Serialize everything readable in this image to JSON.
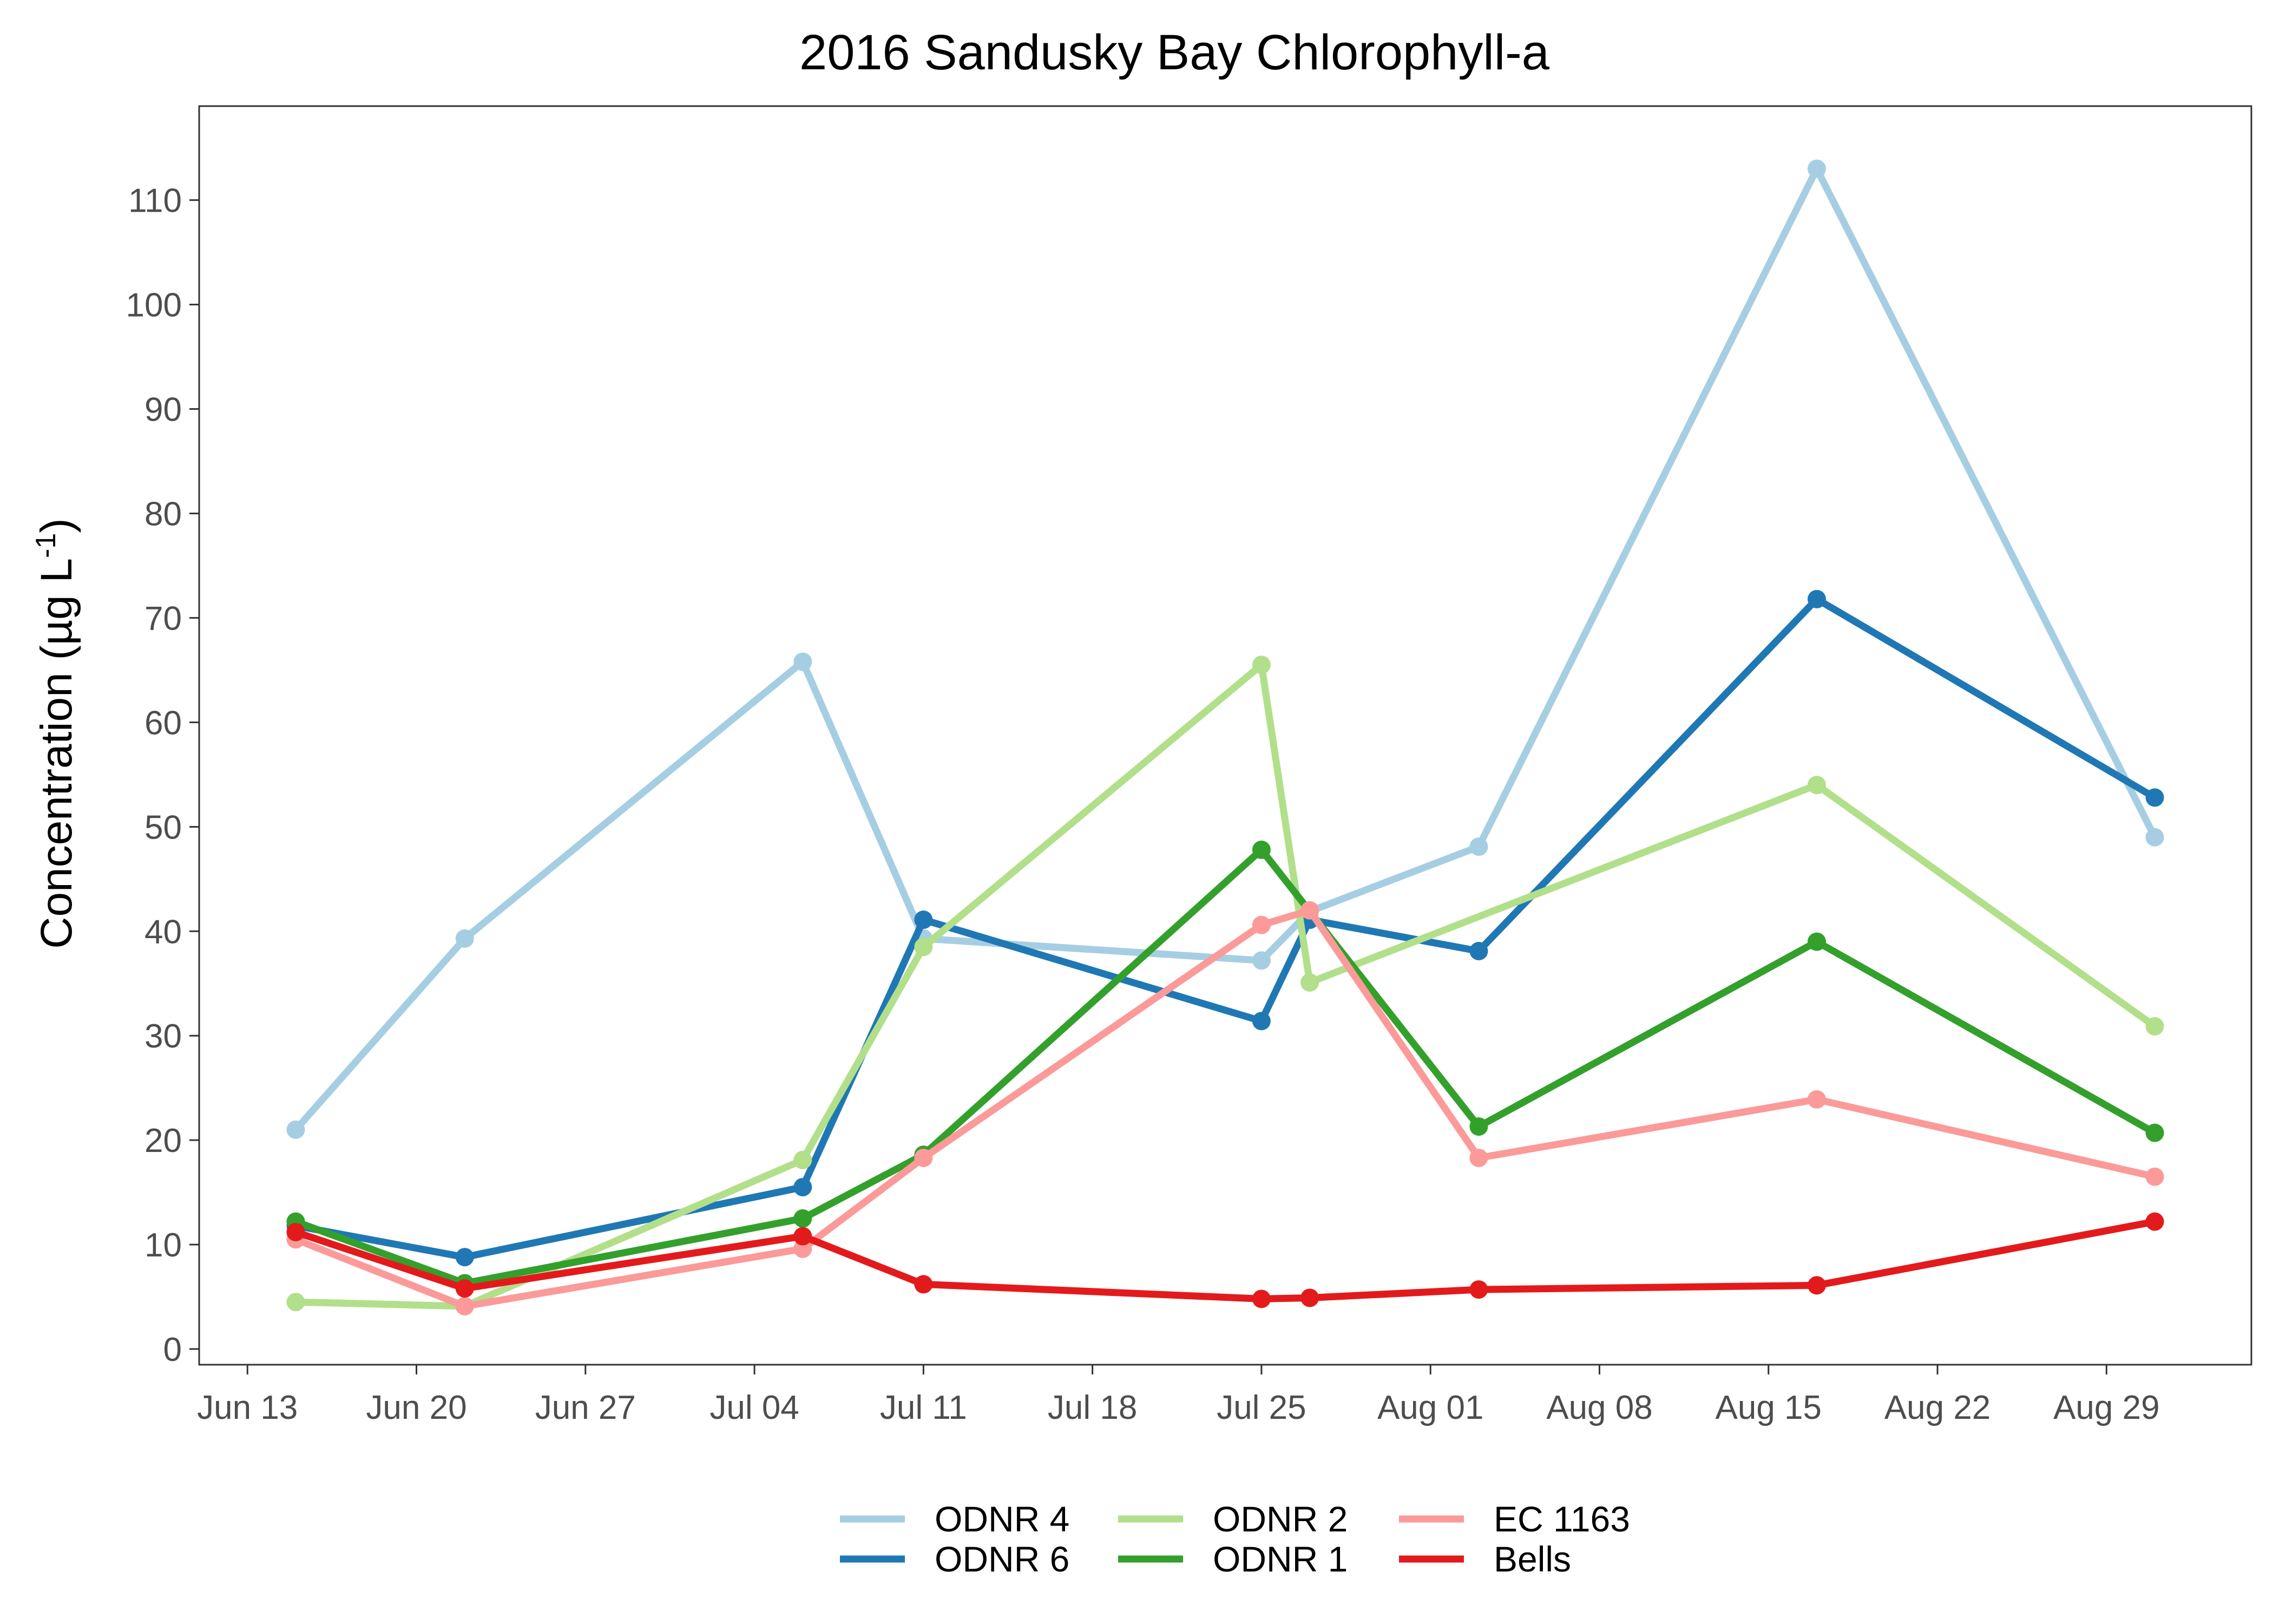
{
  "chart_data": {
    "type": "line",
    "title": "2016 Sandusky Bay Chlorophyll-a",
    "ylabel": {
      "prefix": "Concentration (µg L",
      "superscript": "-1",
      "suffix": ")"
    },
    "xlabel": "",
    "x_axis": {
      "kind": "date",
      "range": [
        "2016-06-11",
        "2016-09-04"
      ],
      "ticks": [
        {
          "date": "2016-06-13",
          "label": "Jun 13"
        },
        {
          "date": "2016-06-20",
          "label": "Jun 20"
        },
        {
          "date": "2016-06-27",
          "label": "Jun 27"
        },
        {
          "date": "2016-07-04",
          "label": "Jul 04"
        },
        {
          "date": "2016-07-11",
          "label": "Jul 11"
        },
        {
          "date": "2016-07-18",
          "label": "Jul 18"
        },
        {
          "date": "2016-07-25",
          "label": "Jul 25"
        },
        {
          "date": "2016-08-01",
          "label": "Aug 01"
        },
        {
          "date": "2016-08-08",
          "label": "Aug 08"
        },
        {
          "date": "2016-08-15",
          "label": "Aug 15"
        },
        {
          "date": "2016-08-22",
          "label": "Aug 22"
        },
        {
          "date": "2016-08-29",
          "label": "Aug 29"
        }
      ]
    },
    "y_axis": {
      "range": [
        -1.5,
        119
      ],
      "ticks": [
        0,
        10,
        20,
        30,
        40,
        50,
        60,
        70,
        80,
        90,
        100,
        110
      ]
    },
    "grid": false,
    "legend": {
      "position": "bottom",
      "columns": 3
    },
    "series": [
      {
        "name": "ODNR 4",
        "color": "#a6cee3",
        "points": [
          {
            "x": "2016-06-15",
            "y": 21.0
          },
          {
            "x": "2016-06-22",
            "y": 39.3
          },
          {
            "x": "2016-07-06",
            "y": 65.8
          },
          {
            "x": "2016-07-11",
            "y": 39.3
          },
          {
            "x": "2016-07-25",
            "y": 37.2
          },
          {
            "x": "2016-07-27",
            "y": 41.9
          },
          {
            "x": "2016-08-03",
            "y": 48.1
          },
          {
            "x": "2016-08-17",
            "y": 113.0
          },
          {
            "x": "2016-08-31",
            "y": 49.0
          }
        ]
      },
      {
        "name": "ODNR 6",
        "color": "#1f78b4",
        "points": [
          {
            "x": "2016-06-15",
            "y": 11.8
          },
          {
            "x": "2016-06-22",
            "y": 8.8
          },
          {
            "x": "2016-07-06",
            "y": 15.5
          },
          {
            "x": "2016-07-11",
            "y": 41.1
          },
          {
            "x": "2016-07-25",
            "y": 31.4
          },
          {
            "x": "2016-07-27",
            "y": 41.1
          },
          {
            "x": "2016-08-03",
            "y": 38.1
          },
          {
            "x": "2016-08-17",
            "y": 71.8
          },
          {
            "x": "2016-08-31",
            "y": 52.8
          }
        ]
      },
      {
        "name": "ODNR 2",
        "color": "#b2df8a",
        "points": [
          {
            "x": "2016-06-15",
            "y": 4.5
          },
          {
            "x": "2016-06-22",
            "y": 4.1
          },
          {
            "x": "2016-07-06",
            "y": 18.1
          },
          {
            "x": "2016-07-11",
            "y": 38.5
          },
          {
            "x": "2016-07-25",
            "y": 65.5
          },
          {
            "x": "2016-07-27",
            "y": 35.1
          },
          {
            "x": "2016-08-17",
            "y": 54.0
          },
          {
            "x": "2016-08-31",
            "y": 30.9
          }
        ]
      },
      {
        "name": "ODNR 1",
        "color": "#33a02c",
        "points": [
          {
            "x": "2016-06-15",
            "y": 12.2
          },
          {
            "x": "2016-06-22",
            "y": 6.3
          },
          {
            "x": "2016-07-06",
            "y": 12.5
          },
          {
            "x": "2016-07-11",
            "y": 18.6
          },
          {
            "x": "2016-07-25",
            "y": 47.8
          },
          {
            "x": "2016-08-03",
            "y": 21.3
          },
          {
            "x": "2016-08-17",
            "y": 39.0
          },
          {
            "x": "2016-08-31",
            "y": 20.7
          }
        ]
      },
      {
        "name": "EC 1163",
        "color": "#fb9a99",
        "points": [
          {
            "x": "2016-06-15",
            "y": 10.5
          },
          {
            "x": "2016-06-22",
            "y": 4.1
          },
          {
            "x": "2016-07-06",
            "y": 9.6
          },
          {
            "x": "2016-07-11",
            "y": 18.3
          },
          {
            "x": "2016-07-25",
            "y": 40.6
          },
          {
            "x": "2016-07-27",
            "y": 42.0
          },
          {
            "x": "2016-08-03",
            "y": 18.3
          },
          {
            "x": "2016-08-17",
            "y": 23.9
          },
          {
            "x": "2016-08-31",
            "y": 16.5
          }
        ]
      },
      {
        "name": "Bells",
        "color": "#e31a1c",
        "points": [
          {
            "x": "2016-06-15",
            "y": 11.2
          },
          {
            "x": "2016-06-22",
            "y": 5.8
          },
          {
            "x": "2016-07-06",
            "y": 10.8
          },
          {
            "x": "2016-07-11",
            "y": 6.2
          },
          {
            "x": "2016-07-25",
            "y": 4.8
          },
          {
            "x": "2016-07-27",
            "y": 4.9
          },
          {
            "x": "2016-08-03",
            "y": 5.7
          },
          {
            "x": "2016-08-17",
            "y": 6.1
          },
          {
            "x": "2016-08-31",
            "y": 12.2
          }
        ]
      }
    ]
  }
}
